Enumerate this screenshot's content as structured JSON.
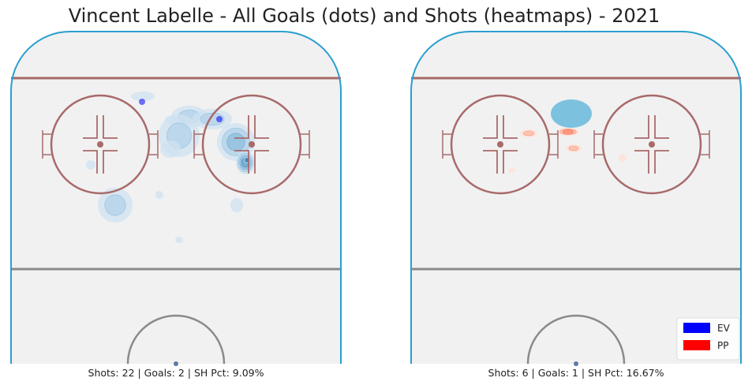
{
  "title": "Vincent Labelle - All Goals (dots) and Shots (heatmaps) - 2021",
  "colors": {
    "boards": "#2a9fd0",
    "red_line": "#a86a6a",
    "center_line": "#8a8a8a",
    "ice": "#f1f1f1",
    "ev": "#0000ff",
    "pp": "#ff0000"
  },
  "legend": [
    {
      "label": "EV",
      "color": "#0000ff"
    },
    {
      "label": "PP",
      "color": "#ff0000"
    }
  ],
  "chart_data": [
    {
      "type": "heatmap",
      "strength": "EV",
      "caption": "Shots: 22 | Goals: 2 | SH Pct: 9.09%",
      "shots": 22,
      "goals": 2,
      "sh_pct": "9.09%",
      "goal_points": [
        {
          "x": -43,
          "y": 91
        },
        {
          "x": 55,
          "y": 69
        }
      ],
      "density_blobs": [
        {
          "x": 17,
          "y": 72,
          "rx": 23,
          "ry": 14,
          "level": 2
        },
        {
          "x": 46,
          "y": 69,
          "rx": 25,
          "ry": 13,
          "level": 2
        },
        {
          "x": -5,
          "y": 68,
          "rx": 9,
          "ry": 6,
          "level": 1
        },
        {
          "x": 4,
          "y": 48,
          "rx": 26,
          "ry": 27,
          "level": 2
        },
        {
          "x": -7,
          "y": 31,
          "rx": 13,
          "ry": 11,
          "level": 1
        },
        {
          "x": 76,
          "y": 40,
          "rx": 24,
          "ry": 24,
          "level": 3
        },
        {
          "x": 88,
          "y": 14,
          "rx": 12,
          "ry": 15,
          "level": 4
        },
        {
          "x": 90,
          "y": 17,
          "rx": 4,
          "ry": 4,
          "level": 5
        },
        {
          "x": -77,
          "y": -40,
          "rx": 22,
          "ry": 22,
          "level": 2
        },
        {
          "x": -108,
          "y": 11,
          "rx": 6,
          "ry": 6,
          "level": 1
        },
        {
          "x": -21,
          "y": -27,
          "rx": 5,
          "ry": 5,
          "level": 1
        },
        {
          "x": 77,
          "y": -40,
          "rx": 8,
          "ry": 9,
          "level": 1
        },
        {
          "x": 4,
          "y": -84,
          "rx": 5,
          "ry": 4,
          "level": 1
        },
        {
          "x": -42,
          "y": 98,
          "rx": 15,
          "ry": 6,
          "level": 1
        }
      ]
    },
    {
      "type": "heatmap",
      "strength": "PP",
      "caption": "Shots: 6 | Goals: 1 | SH Pct: 16.67%",
      "shots": 6,
      "goals": 1,
      "sh_pct": "16.67%",
      "goal_points": [
        {
          "x": -6,
          "y": 76
        }
      ],
      "density_blobs": [
        {
          "x": -60,
          "y": 51,
          "rx": 11,
          "ry": 5,
          "level": 2
        },
        {
          "x": -10,
          "y": 53,
          "rx": 14,
          "ry": 5,
          "level": 3
        },
        {
          "x": -3,
          "y": 32,
          "rx": 10,
          "ry": 5,
          "level": 2
        },
        {
          "x": -81,
          "y": 4,
          "rx": 5,
          "ry": 3,
          "level": 1
        },
        {
          "x": 59,
          "y": 20,
          "rx": 5,
          "ry": 5,
          "level": 1
        }
      ]
    }
  ]
}
